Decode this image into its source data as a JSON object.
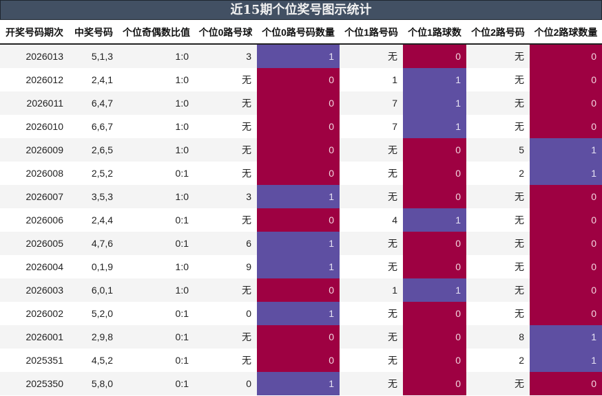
{
  "title": "近15期个位奖号图示统计",
  "headers": [
    "开奖号码期次",
    "中奖号码",
    "个位奇偶数比值",
    "个位0路号球",
    "个位0路号码数量",
    "个位1路号码",
    "个位1路球数",
    "个位2路号码",
    "个位2路球数量"
  ],
  "colors": {
    "count_1": "#5e4fa2",
    "count_0": "#9e0142",
    "title_bg": "#425063"
  },
  "rows": [
    [
      "2026013",
      "5,1,3",
      "1:0",
      "3",
      "1",
      "无",
      "0",
      "无",
      "0"
    ],
    [
      "2026012",
      "2,4,1",
      "1:0",
      "无",
      "0",
      "1",
      "1",
      "无",
      "0"
    ],
    [
      "2026011",
      "6,4,7",
      "1:0",
      "无",
      "0",
      "7",
      "1",
      "无",
      "0"
    ],
    [
      "2026010",
      "6,6,7",
      "1:0",
      "无",
      "0",
      "7",
      "1",
      "无",
      "0"
    ],
    [
      "2026009",
      "2,6,5",
      "1:0",
      "无",
      "0",
      "无",
      "0",
      "5",
      "1"
    ],
    [
      "2026008",
      "2,5,2",
      "0:1",
      "无",
      "0",
      "无",
      "0",
      "2",
      "1"
    ],
    [
      "2026007",
      "3,5,3",
      "1:0",
      "3",
      "1",
      "无",
      "0",
      "无",
      "0"
    ],
    [
      "2026006",
      "2,4,4",
      "0:1",
      "无",
      "0",
      "4",
      "1",
      "无",
      "0"
    ],
    [
      "2026005",
      "4,7,6",
      "0:1",
      "6",
      "1",
      "无",
      "0",
      "无",
      "0"
    ],
    [
      "2026004",
      "0,1,9",
      "1:0",
      "9",
      "1",
      "无",
      "0",
      "无",
      "0"
    ],
    [
      "2026003",
      "6,0,1",
      "1:0",
      "无",
      "0",
      "1",
      "1",
      "无",
      "0"
    ],
    [
      "2026002",
      "5,2,0",
      "0:1",
      "0",
      "1",
      "无",
      "0",
      "无",
      "0"
    ],
    [
      "2026001",
      "2,9,8",
      "0:1",
      "无",
      "0",
      "无",
      "0",
      "8",
      "1"
    ],
    [
      "2025351",
      "4,5,2",
      "0:1",
      "无",
      "0",
      "无",
      "0",
      "2",
      "1"
    ],
    [
      "2025350",
      "5,8,0",
      "0:1",
      "0",
      "1",
      "无",
      "0",
      "无",
      "0"
    ]
  ],
  "chart_data": {
    "type": "table",
    "title": "近15期个位奖号图示统计",
    "columns": [
      "开奖号码期次",
      "中奖号码",
      "个位奇偶数比值",
      "个位0路号球",
      "个位0路号码数量",
      "个位1路号码",
      "个位1路球数",
      "个位2路号码",
      "个位2路球数量"
    ],
    "categories": [
      "2026013",
      "2026012",
      "2026011",
      "2026010",
      "2026009",
      "2026008",
      "2026007",
      "2026006",
      "2026005",
      "2026004",
      "2026003",
      "2026002",
      "2026001",
      "2025351",
      "2025350"
    ],
    "series": [
      {
        "name": "个位0路号码数量",
        "values": [
          1,
          0,
          0,
          0,
          0,
          0,
          1,
          0,
          1,
          1,
          0,
          1,
          0,
          0,
          1
        ]
      },
      {
        "name": "个位1路球数",
        "values": [
          0,
          1,
          1,
          1,
          0,
          0,
          0,
          1,
          0,
          0,
          1,
          0,
          0,
          0,
          0
        ]
      },
      {
        "name": "个位2路球数量",
        "values": [
          0,
          0,
          0,
          0,
          1,
          1,
          0,
          0,
          0,
          0,
          0,
          0,
          1,
          1,
          0
        ]
      }
    ],
    "color_legend": {
      "1": "#5e4fa2",
      "0": "#9e0142"
    }
  }
}
